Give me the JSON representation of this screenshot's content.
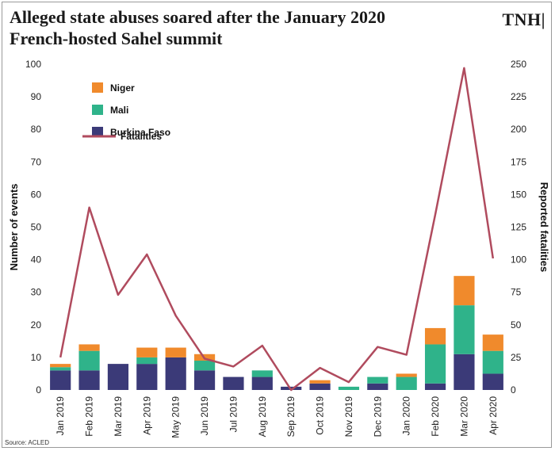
{
  "title_lines": [
    "Alleged state abuses soared after the January 2020",
    "French-hosted Sahel summit"
  ],
  "brand": "TNH|",
  "source": "Source: ACLED",
  "chart_data": {
    "type": "bar",
    "stacked": true,
    "categories": [
      "Jan 2019",
      "Feb 2019",
      "Mar 2019",
      "Apr 2019",
      "May 2019",
      "Jun 2019",
      "Jul 2019",
      "Aug 2019",
      "Sep 2019",
      "Oct 2019",
      "Nov 2019",
      "Dec 2019",
      "Jan 2020",
      "Feb 2020",
      "Mar 2020",
      "Apr 2020"
    ],
    "series": [
      {
        "name": "Burkina Faso",
        "axis": "left",
        "color": "#3b3a78",
        "values": [
          6,
          6,
          8,
          8,
          10,
          6,
          4,
          4,
          1,
          2,
          0,
          2,
          0,
          2,
          11,
          5
        ]
      },
      {
        "name": "Mali",
        "axis": "left",
        "color": "#2fb38a",
        "values": [
          1,
          6,
          0,
          2,
          0,
          3,
          0,
          2,
          0,
          0,
          1,
          2,
          4,
          12,
          15,
          7
        ]
      },
      {
        "name": "Niger",
        "axis": "left",
        "color": "#f08a2c",
        "values": [
          1,
          2,
          0,
          3,
          3,
          2,
          0,
          0,
          0,
          1,
          0,
          0,
          1,
          5,
          9,
          5
        ]
      }
    ],
    "line_series": {
      "name": "Fatalities",
      "axis": "right",
      "color": "#b04b5e",
      "values": [
        25,
        140,
        73,
        104,
        57,
        24,
        18,
        34,
        0,
        17,
        6,
        33,
        27,
        135,
        247,
        101
      ]
    },
    "ylabel": "Number of events",
    "y2label": "Reported fatalities",
    "ylim": [
      0,
      100
    ],
    "y2lim": [
      0,
      250
    ],
    "yticks": [
      0,
      10,
      20,
      30,
      40,
      50,
      60,
      70,
      80,
      90,
      100
    ],
    "y2ticks": [
      0,
      25,
      50,
      75,
      100,
      125,
      150,
      175,
      200,
      225,
      250
    ],
    "legend_placement": "top-left",
    "legend_order": [
      "Niger",
      "Mali",
      "Burkina Faso",
      "Fatalities"
    ],
    "grid": false
  }
}
